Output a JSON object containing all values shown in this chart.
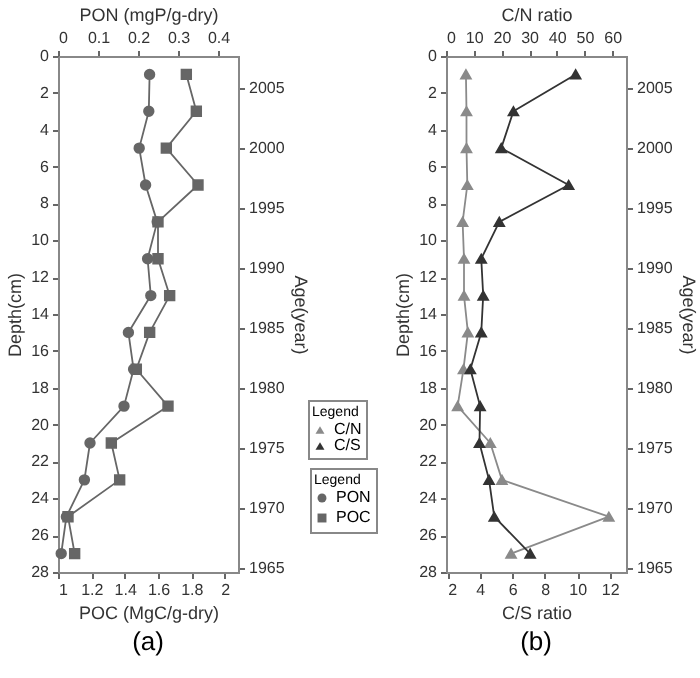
{
  "chart_data": [
    {
      "type": "line",
      "xlabel": "POC (MgC/g-dry)",
      "x2label": "PON (mgP/g-dry)",
      "ylabel": "Depth(cm)",
      "y2label": "Age(year)",
      "legend_title": "Legend",
      "legend": "right",
      "grid": false,
      "annotations": [
        "(a)"
      ],
      "xlim": [
        1,
        2.08
      ],
      "xticks": [
        1,
        1.2,
        1.4,
        1.6,
        1.8,
        2
      ],
      "x2lim": [
        0,
        0.45
      ],
      "x2ticks": [
        0,
        0.1,
        0.2,
        0.3,
        0.4
      ],
      "ylim": [
        28,
        0
      ],
      "yticks": [
        0,
        2,
        4,
        6,
        8,
        10,
        12,
        14,
        16,
        18,
        20,
        22,
        24,
        26,
        28
      ],
      "y2lim": [
        1964.7,
        2007.7
      ],
      "y2ticks": [
        1965,
        1970,
        1975,
        1980,
        1985,
        1990,
        1995,
        2000,
        2005
      ],
      "series": [
        {
          "name": "PON",
          "axis": "x2",
          "marker": "circle",
          "color": "#666666",
          "x": [
            0.229,
            0.227,
            0.203,
            0.219,
            0.248,
            0.224,
            0.232,
            0.176,
            0.189,
            0.165,
            0.08,
            0.066,
            0.021,
            0.008
          ],
          "values": [
            1,
            3,
            5,
            7,
            9,
            11,
            13,
            15,
            17,
            19,
            21,
            23,
            25,
            27
          ]
        },
        {
          "name": "POC",
          "marker": "square",
          "color": "#666666",
          "x": [
            1.77,
            1.83,
            1.65,
            1.84,
            1.6,
            1.6,
            1.67,
            1.55,
            1.47,
            1.66,
            1.32,
            1.37,
            1.06,
            1.1
          ],
          "values": [
            1,
            3,
            5,
            7,
            9,
            11,
            13,
            15,
            17,
            19,
            21,
            23,
            25,
            27
          ]
        }
      ]
    },
    {
      "type": "line",
      "xlabel": "C/S ratio",
      "x2label": "C/N ratio",
      "ylabel": "Depth(cm)",
      "y2label": "Age(year)",
      "legend_title": "Legend",
      "legend": "left",
      "grid": false,
      "annotations": [
        "(b)"
      ],
      "xlim": [
        1.92,
        13
      ],
      "xticks": [
        2,
        4,
        6,
        8,
        10,
        12
      ],
      "x2lim": [
        0,
        65
      ],
      "x2ticks": [
        0,
        10,
        20,
        30,
        40,
        50,
        60
      ],
      "ylim": [
        28,
        0
      ],
      "yticks": [
        0,
        2,
        4,
        6,
        8,
        10,
        12,
        14,
        16,
        18,
        20,
        22,
        24,
        26,
        28
      ],
      "y2lim": [
        1964.7,
        2007.7
      ],
      "y2ticks": [
        1965,
        1970,
        1975,
        1980,
        1985,
        1990,
        1995,
        2000,
        2005
      ],
      "series": [
        {
          "name": "C/N",
          "axis": "x2",
          "marker": "triangle",
          "color": "#8a8a8a",
          "x": [
            7.2,
            7.4,
            7.4,
            7.7,
            6.0,
            6.5,
            6.5,
            7.9,
            6.3,
            4.2,
            16.0,
            20.2,
            58.8,
            23.5
          ],
          "values": [
            1,
            3,
            5,
            7,
            9,
            11,
            13,
            15,
            17,
            19,
            21,
            23,
            25,
            27
          ]
        },
        {
          "name": "C/S",
          "marker": "triangle",
          "color": "#333333",
          "x": [
            9.9,
            6.07,
            5.32,
            9.47,
            5.2,
            4.09,
            4.21,
            4.09,
            3.42,
            4.02,
            3.98,
            4.57,
            4.89,
            7.1
          ],
          "values": [
            1,
            3,
            5,
            7,
            9,
            11,
            13,
            15,
            17,
            19,
            21,
            23,
            25,
            27
          ]
        }
      ]
    }
  ]
}
